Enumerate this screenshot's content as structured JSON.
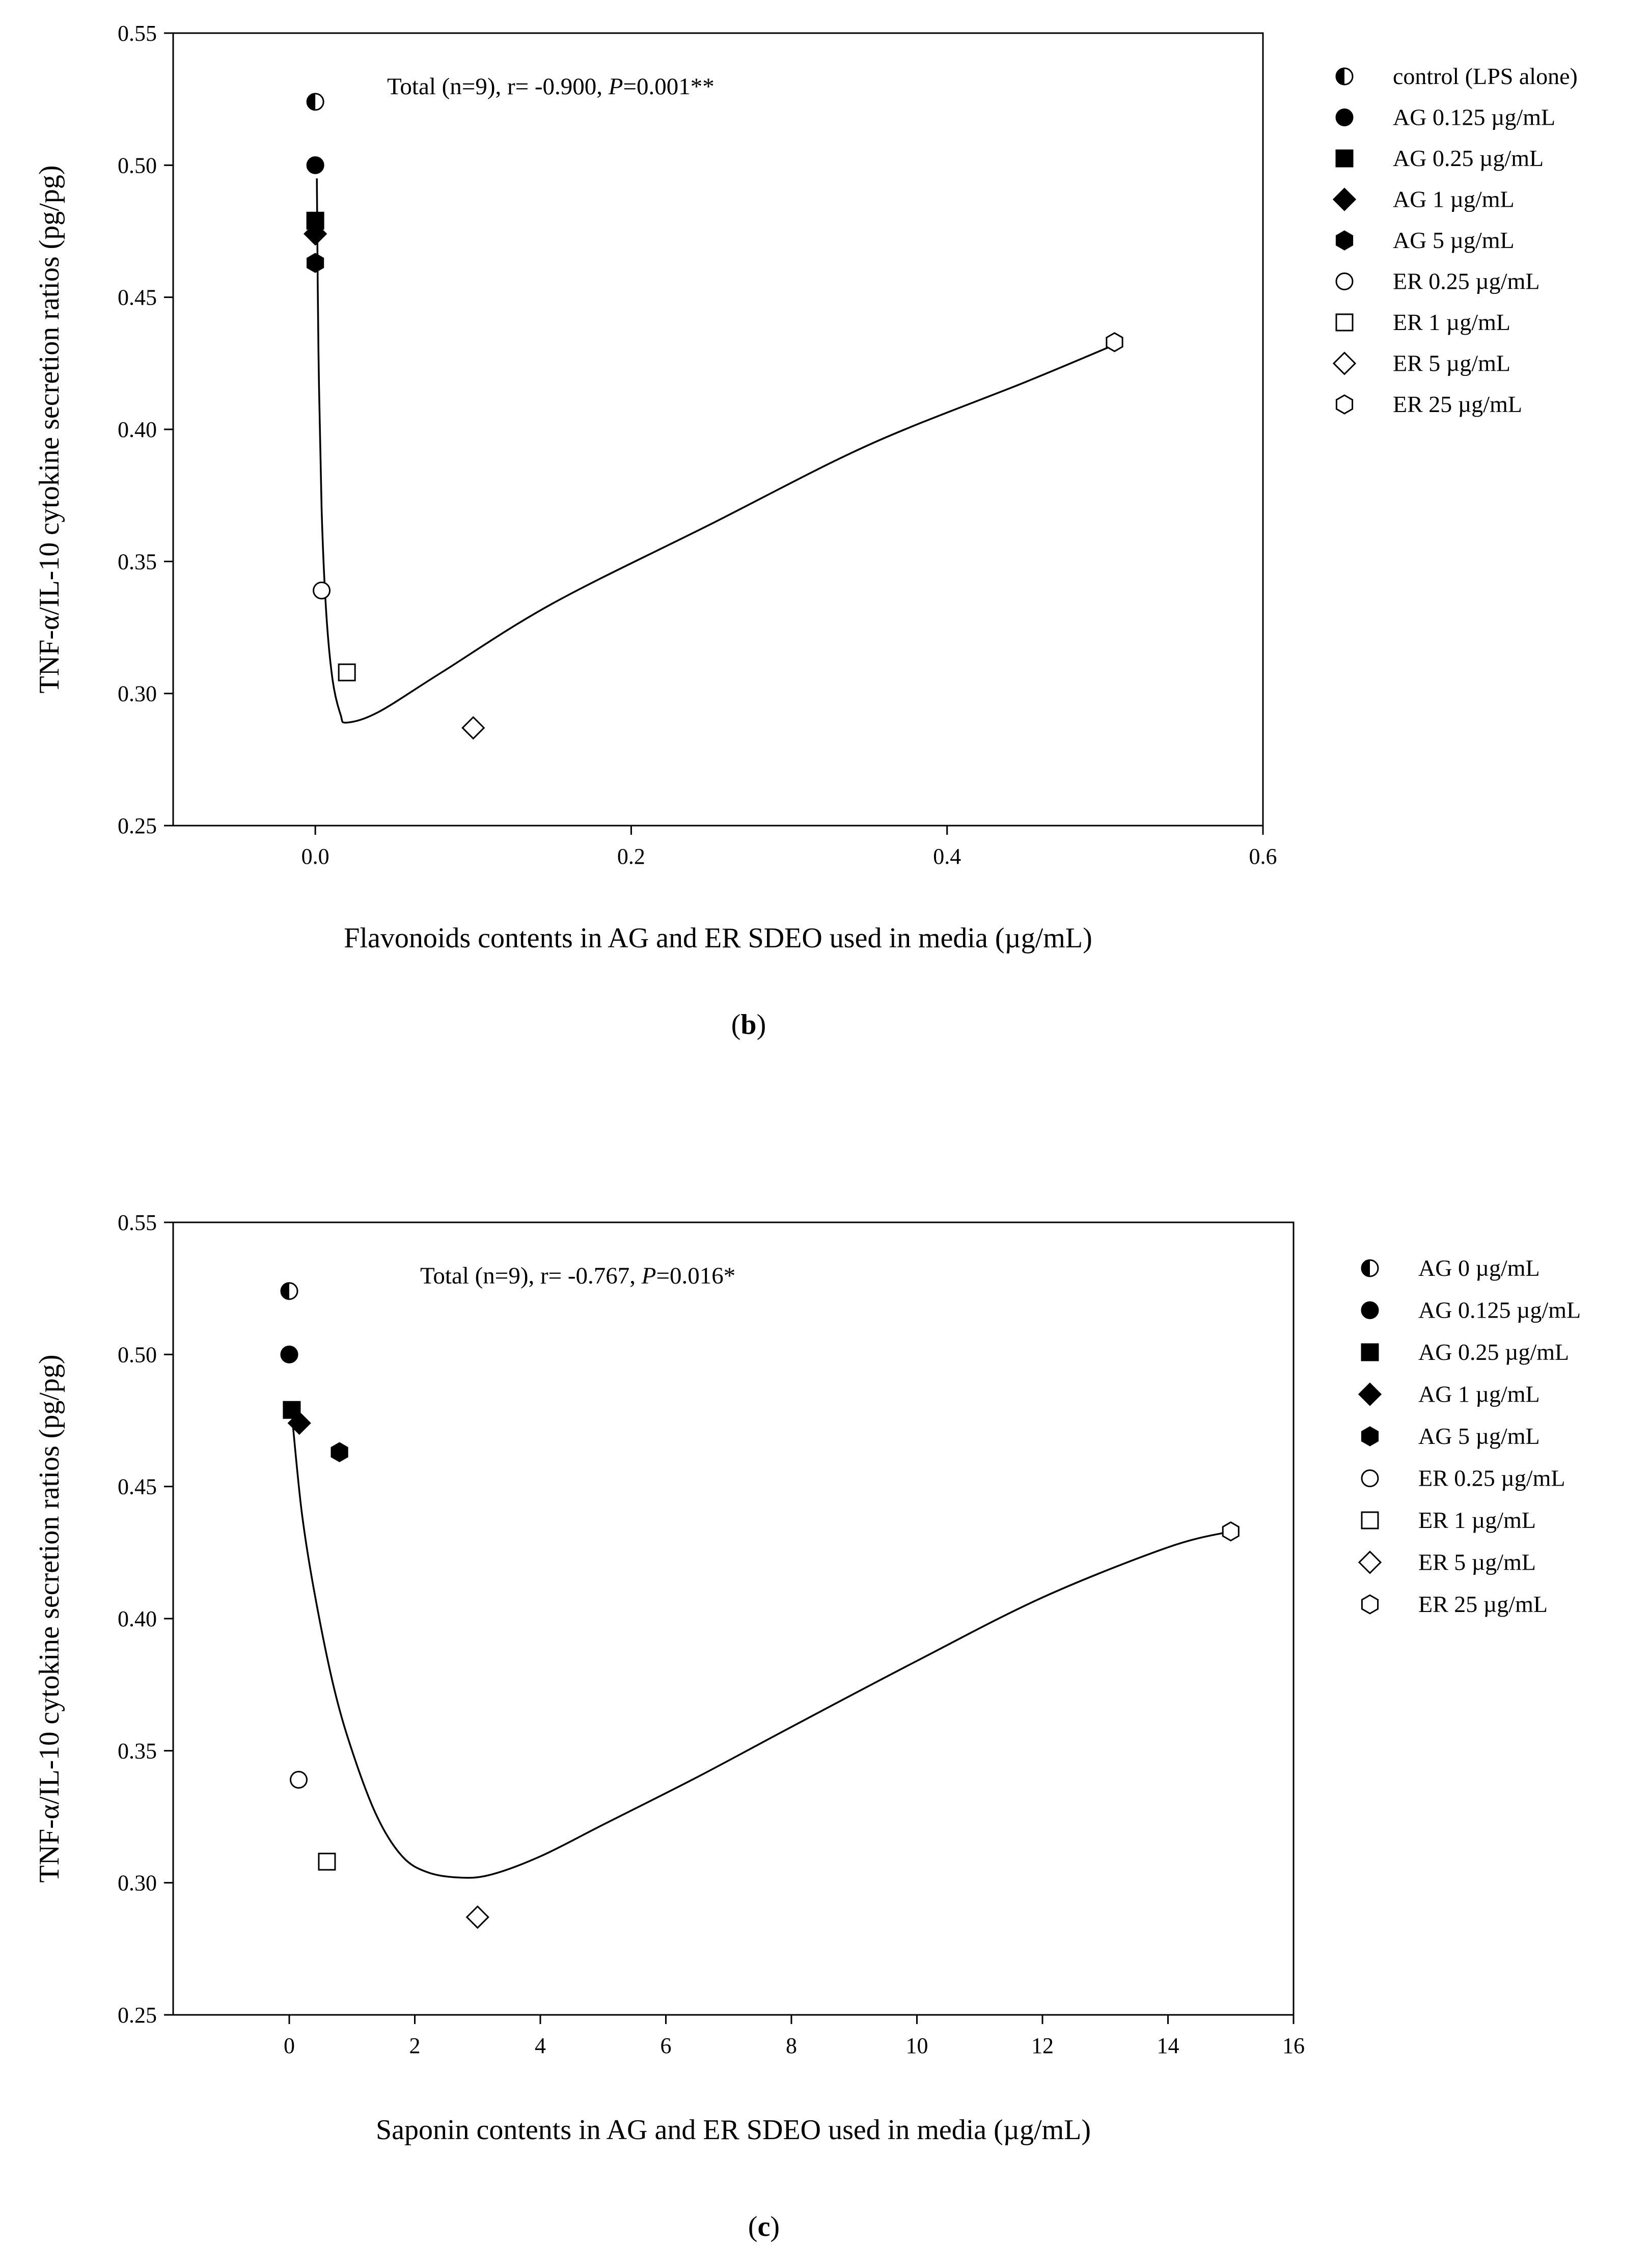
{
  "chart_data": [
    {
      "type": "scatter",
      "panel_label": "b",
      "title": "",
      "xlabel": "Flavonoids contents in AG and ER SDEO used in media (µg/mL)",
      "ylabel": "TNF-α/IL-10 cytokine secretion ratios (pg/pg)",
      "xlim": [
        -0.09,
        0.6
      ],
      "ylim": [
        0.25,
        0.55
      ],
      "xticks": [
        0.0,
        0.2,
        0.4,
        0.6
      ],
      "xtick_labels": [
        "0.0",
        "0.2",
        "0.4",
        "0.6"
      ],
      "yticks": [
        0.25,
        0.3,
        0.35,
        0.4,
        0.45,
        0.5,
        0.55
      ],
      "ytick_labels": [
        "0.25",
        "0.30",
        "0.35",
        "0.40",
        "0.45",
        "0.50",
        "0.55"
      ],
      "annotation": {
        "prefix": "Total (n=9), r= -0.900, ",
        "p_label": "P",
        "p_value": "=0.001**"
      },
      "legend_position": "right",
      "series": [
        {
          "name": "control (LPS alone)",
          "marker": "half-circle",
          "x": [
            0.0
          ],
          "y": [
            0.524
          ]
        },
        {
          "name": "AG 0.125 µg/mL",
          "marker": "circle-filled",
          "x": [
            0.0
          ],
          "y": [
            0.5
          ]
        },
        {
          "name": "AG 0.25 µg/mL",
          "marker": "square-filled",
          "x": [
            0.0
          ],
          "y": [
            0.479
          ]
        },
        {
          "name": "AG 1 µg/mL",
          "marker": "diamond-filled",
          "x": [
            0.0
          ],
          "y": [
            0.474
          ]
        },
        {
          "name": "AG 5 µg/mL",
          "marker": "hexagon-filled",
          "x": [
            0.0
          ],
          "y": [
            0.463
          ]
        },
        {
          "name": "ER 0.25 µg/mL",
          "marker": "circle-open",
          "x": [
            0.004
          ],
          "y": [
            0.339
          ]
        },
        {
          "name": "ER 1  µg/mL",
          "marker": "square-open",
          "x": [
            0.02
          ],
          "y": [
            0.308
          ]
        },
        {
          "name": "ER 5 µg/mL",
          "marker": "diamond-open",
          "x": [
            0.1
          ],
          "y": [
            0.287
          ]
        },
        {
          "name": "ER 25 µg/mL",
          "marker": "hexagon-open",
          "x": [
            0.506
          ],
          "y": [
            0.433
          ]
        }
      ],
      "fit_curve": {
        "x": [
          0.001,
          0.002,
          0.004,
          0.007,
          0.011,
          0.016,
          0.02,
          0.04,
          0.08,
          0.15,
          0.25,
          0.35,
          0.45,
          0.506
        ],
        "y": [
          0.495,
          0.43,
          0.37,
          0.33,
          0.305,
          0.292,
          0.289,
          0.293,
          0.308,
          0.334,
          0.364,
          0.394,
          0.418,
          0.432
        ]
      }
    },
    {
      "type": "scatter",
      "panel_label": "c",
      "title": "",
      "xlabel": "Saponin contents in AG and ER SDEO used in media (µg/mL)",
      "ylabel": "TNF-α/IL-10 cytokine secretion ratios (pg/pg)",
      "xlim": [
        -1.85,
        16
      ],
      "ylim": [
        0.25,
        0.55
      ],
      "xticks": [
        0,
        2,
        4,
        6,
        8,
        10,
        12,
        14,
        16
      ],
      "xtick_labels": [
        "0",
        "2",
        "4",
        "6",
        "8",
        "10",
        "12",
        "14",
        "16"
      ],
      "yticks": [
        0.25,
        0.3,
        0.35,
        0.4,
        0.45,
        0.5,
        0.55
      ],
      "ytick_labels": [
        "0.25",
        "0.30",
        "0.35",
        "0.40",
        "0.45",
        "0.50",
        "0.55"
      ],
      "annotation": {
        "prefix": "Total (n=9), r= -0.767,  ",
        "p_label": "P",
        "p_value": "=0.016*"
      },
      "legend_position": "right",
      "series": [
        {
          "name": "AG 0 µg/mL",
          "marker": "half-circle",
          "x": [
            0.0
          ],
          "y": [
            0.524
          ]
        },
        {
          "name": "AG 0.125 µg/mL",
          "marker": "circle-filled",
          "x": [
            0.0
          ],
          "y": [
            0.5
          ]
        },
        {
          "name": "AG 0.25 µg/mL",
          "marker": "square-filled",
          "x": [
            0.04
          ],
          "y": [
            0.479
          ]
        },
        {
          "name": "AG 1 µg/mL",
          "marker": "diamond-filled",
          "x": [
            0.16
          ],
          "y": [
            0.474
          ]
        },
        {
          "name": "AG 5 µg/mL",
          "marker": "hexagon-filled",
          "x": [
            0.8
          ],
          "y": [
            0.463
          ]
        },
        {
          "name": "ER 0.25 µg/mL",
          "marker": "circle-open",
          "x": [
            0.15
          ],
          "y": [
            0.339
          ]
        },
        {
          "name": "ER 1 µg/mL",
          "marker": "square-open",
          "x": [
            0.6
          ],
          "y": [
            0.308
          ]
        },
        {
          "name": "ER 5 µg/mL",
          "marker": "diamond-open",
          "x": [
            3.0
          ],
          "y": [
            0.287
          ]
        },
        {
          "name": "ER 25 µg/mL",
          "marker": "hexagon-open",
          "x": [
            15.0
          ],
          "y": [
            0.433
          ]
        }
      ],
      "fit_curve": {
        "x": [
          0.05,
          0.2,
          0.4,
          0.7,
          1.0,
          1.4,
          1.8,
          2.2,
          2.7,
          3.2,
          4.0,
          5.0,
          6.5,
          8.0,
          10.0,
          12.0,
          14.0,
          15.0
        ],
        "y": [
          0.475,
          0.44,
          0.41,
          0.375,
          0.35,
          0.325,
          0.31,
          0.304,
          0.302,
          0.303,
          0.31,
          0.322,
          0.34,
          0.359,
          0.384,
          0.408,
          0.427,
          0.433
        ]
      }
    }
  ]
}
